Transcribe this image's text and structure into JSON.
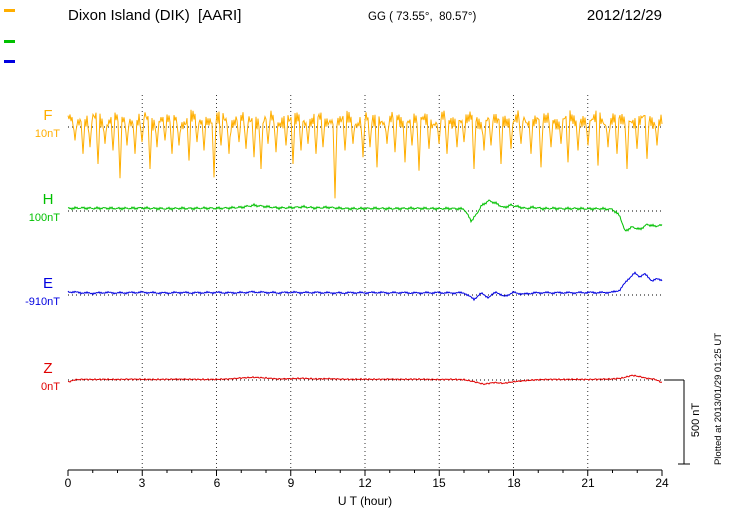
{
  "header": {
    "title": "Dixon Island (DIK)  [AARI]",
    "coords": "GG ( 73.55°,  80.57°)",
    "date": "2012/12/29"
  },
  "axis": {
    "xlabel": "U T (hour)",
    "ticks": [
      "0",
      "3",
      "6",
      "9",
      "12",
      "15",
      "18",
      "21",
      "24"
    ]
  },
  "scale_bar": {
    "label": "500 nT",
    "nT": 500
  },
  "footer_note": "Plotted at 2013/01/29 01:25 UT",
  "chart_data": {
    "type": "line",
    "title": "Magnetogram Dixon Island (DIK) [AARI] 2012/12/29",
    "xlabel": "U T (hour)",
    "x_range": [
      0,
      24
    ],
    "x_ticks": [
      0,
      3,
      6,
      9,
      12,
      15,
      18,
      21,
      24
    ],
    "grid": {
      "vertical_dotted_hours": [
        3,
        6,
        9,
        12,
        15,
        18,
        21
      ],
      "horizontal_dotted": "one dotted baseline per component"
    },
    "scale_reference": {
      "nT": 500,
      "label": "500 nT"
    },
    "series": [
      {
        "name": "F",
        "color": "#FFAE00",
        "baseline_label": "10nT",
        "baseline_nT": 10,
        "character": "dense noise band above baseline with frequent sharp downward spikes",
        "band_center_nT": 40,
        "noise_amplitude_nT": 62,
        "spikes": [
          [
            0.3,
            120
          ],
          [
            0.6,
            200
          ],
          [
            0.9,
            160
          ],
          [
            1.2,
            260
          ],
          [
            1.5,
            140
          ],
          [
            1.8,
            180
          ],
          [
            2.1,
            345
          ],
          [
            2.4,
            150
          ],
          [
            2.7,
            200
          ],
          [
            3.0,
            130
          ],
          [
            3.3,
            290
          ],
          [
            3.6,
            160
          ],
          [
            3.9,
            120
          ],
          [
            4.2,
            200
          ],
          [
            4.5,
            150
          ],
          [
            4.9,
            240
          ],
          [
            5.2,
            130
          ],
          [
            5.5,
            180
          ],
          [
            5.9,
            340
          ],
          [
            6.2,
            150
          ],
          [
            6.5,
            200
          ],
          [
            6.9,
            130
          ],
          [
            7.2,
            170
          ],
          [
            7.5,
            220
          ],
          [
            7.8,
            290
          ],
          [
            8.1,
            140
          ],
          [
            8.4,
            190
          ],
          [
            8.8,
            150
          ],
          [
            9.1,
            260
          ],
          [
            9.4,
            180
          ],
          [
            9.7,
            140
          ],
          [
            10.0,
            200
          ],
          [
            10.3,
            160
          ],
          [
            10.8,
            465
          ],
          [
            11.2,
            180
          ],
          [
            11.5,
            140
          ],
          [
            11.9,
            220
          ],
          [
            12.2,
            160
          ],
          [
            12.5,
            280
          ],
          [
            12.9,
            140
          ],
          [
            13.2,
            190
          ],
          [
            13.6,
            250
          ],
          [
            13.9,
            150
          ],
          [
            14.2,
            300
          ],
          [
            14.6,
            170
          ],
          [
            15.0,
            140
          ],
          [
            15.3,
            200
          ],
          [
            15.7,
            160
          ],
          [
            16.0,
            130
          ],
          [
            16.4,
            290
          ],
          [
            16.8,
            180
          ],
          [
            17.1,
            150
          ],
          [
            17.5,
            260
          ],
          [
            17.9,
            170
          ],
          [
            18.3,
            140
          ],
          [
            18.7,
            200
          ],
          [
            19.1,
            280
          ],
          [
            19.5,
            160
          ],
          [
            19.9,
            140
          ],
          [
            20.2,
            250
          ],
          [
            20.6,
            180
          ],
          [
            21.0,
            150
          ],
          [
            21.4,
            270
          ],
          [
            21.8,
            160
          ],
          [
            22.2,
            200
          ],
          [
            22.6,
            290
          ],
          [
            23.0,
            170
          ],
          [
            23.4,
            230
          ],
          [
            23.8,
            150
          ]
        ]
      },
      {
        "name": "H",
        "color": "#00C000",
        "baseline_label": "100nT",
        "baseline_nT": 100,
        "points": [
          [
            0,
            15
          ],
          [
            0.5,
            18
          ],
          [
            1,
            16
          ],
          [
            1.5,
            17
          ],
          [
            2,
            15
          ],
          [
            2.5,
            16
          ],
          [
            3,
            18
          ],
          [
            3.5,
            15
          ],
          [
            4,
            14
          ],
          [
            4.5,
            16
          ],
          [
            5,
            15
          ],
          [
            5.5,
            17
          ],
          [
            6,
            16
          ],
          [
            6.5,
            18
          ],
          [
            7,
            22
          ],
          [
            7.5,
            34
          ],
          [
            8,
            26
          ],
          [
            8.5,
            18
          ],
          [
            9,
            20
          ],
          [
            9.5,
            25
          ],
          [
            10,
            18
          ],
          [
            10.5,
            22
          ],
          [
            11,
            16
          ],
          [
            11.5,
            14
          ],
          [
            12,
            15
          ],
          [
            12.5,
            16
          ],
          [
            13,
            14
          ],
          [
            13.5,
            15
          ],
          [
            14,
            16
          ],
          [
            14.5,
            15
          ],
          [
            15,
            14
          ],
          [
            15.5,
            15
          ],
          [
            16,
            12
          ],
          [
            16.3,
            -60
          ],
          [
            16.5,
            -20
          ],
          [
            16.7,
            30
          ],
          [
            17,
            62
          ],
          [
            17.3,
            45
          ],
          [
            17.6,
            20
          ],
          [
            17.9,
            35
          ],
          [
            18.2,
            25
          ],
          [
            18.5,
            15
          ],
          [
            18.8,
            22
          ],
          [
            19.2,
            14
          ],
          [
            19.6,
            16
          ],
          [
            20,
            14
          ],
          [
            20.5,
            15
          ],
          [
            21,
            13
          ],
          [
            21.5,
            14
          ],
          [
            22,
            10
          ],
          [
            22.3,
            -30
          ],
          [
            22.5,
            -120
          ],
          [
            22.8,
            -95
          ],
          [
            23.1,
            -110
          ],
          [
            23.4,
            -80
          ],
          [
            23.7,
            -90
          ],
          [
            24,
            -85
          ]
        ]
      },
      {
        "name": "E",
        "color": "#0000E0",
        "baseline_label": "-910nT",
        "baseline_nT": -910,
        "points": [
          [
            0,
            20
          ],
          [
            0.5,
            14
          ],
          [
            1,
            10
          ],
          [
            1.5,
            15
          ],
          [
            2,
            12
          ],
          [
            2.5,
            14
          ],
          [
            3,
            16
          ],
          [
            3.5,
            13
          ],
          [
            4,
            12
          ],
          [
            4.5,
            15
          ],
          [
            5,
            13
          ],
          [
            5.5,
            14
          ],
          [
            6,
            15
          ],
          [
            6.5,
            13
          ],
          [
            7,
            14
          ],
          [
            7.5,
            18
          ],
          [
            8,
            15
          ],
          [
            8.5,
            13
          ],
          [
            9,
            16
          ],
          [
            9.5,
            14
          ],
          [
            10,
            15
          ],
          [
            10.5,
            13
          ],
          [
            11,
            12
          ],
          [
            11.5,
            14
          ],
          [
            12,
            13
          ],
          [
            12.5,
            15
          ],
          [
            13,
            13
          ],
          [
            13.5,
            14
          ],
          [
            14,
            12
          ],
          [
            14.5,
            13
          ],
          [
            15,
            14
          ],
          [
            15.5,
            12
          ],
          [
            16,
            13
          ],
          [
            16.4,
            -25
          ],
          [
            16.7,
            10
          ],
          [
            17,
            -15
          ],
          [
            17.3,
            20
          ],
          [
            17.6,
            -10
          ],
          [
            18,
            15
          ],
          [
            18.4,
            5
          ],
          [
            18.8,
            12
          ],
          [
            19.2,
            14
          ],
          [
            19.6,
            13
          ],
          [
            20,
            14
          ],
          [
            20.5,
            13
          ],
          [
            21,
            15
          ],
          [
            21.5,
            14
          ],
          [
            22,
            16
          ],
          [
            22.3,
            30
          ],
          [
            22.6,
            90
          ],
          [
            22.9,
            130
          ],
          [
            23.1,
            110
          ],
          [
            23.3,
            125
          ],
          [
            23.6,
            85
          ],
          [
            23.8,
            95
          ],
          [
            24,
            90
          ]
        ]
      },
      {
        "name": "Z",
        "color": "#E00000",
        "baseline_label": "0nT",
        "baseline_nT": 0,
        "points": [
          [
            0,
            -12
          ],
          [
            0.3,
            2
          ],
          [
            0.6,
            4
          ],
          [
            1,
            3
          ],
          [
            1.5,
            4
          ],
          [
            2,
            3
          ],
          [
            2.5,
            5
          ],
          [
            3,
            4
          ],
          [
            3.5,
            3
          ],
          [
            4,
            4
          ],
          [
            4.5,
            5
          ],
          [
            5,
            4
          ],
          [
            5.5,
            3
          ],
          [
            6,
            4
          ],
          [
            6.5,
            6
          ],
          [
            7,
            12
          ],
          [
            7.5,
            16
          ],
          [
            8,
            12
          ],
          [
            8.5,
            6
          ],
          [
            9,
            8
          ],
          [
            9.5,
            10
          ],
          [
            10,
            6
          ],
          [
            10.5,
            8
          ],
          [
            11,
            5
          ],
          [
            11.5,
            4
          ],
          [
            12,
            5
          ],
          [
            12.5,
            4
          ],
          [
            13,
            5
          ],
          [
            13.5,
            4
          ],
          [
            14,
            5
          ],
          [
            14.5,
            4
          ],
          [
            15,
            3
          ],
          [
            15.5,
            4
          ],
          [
            16,
            2
          ],
          [
            16.4,
            -10
          ],
          [
            16.8,
            -25
          ],
          [
            17.2,
            -15
          ],
          [
            17.6,
            -20
          ],
          [
            18,
            -10
          ],
          [
            18.4,
            -5
          ],
          [
            18.8,
            0
          ],
          [
            19.2,
            3
          ],
          [
            19.6,
            4
          ],
          [
            20,
            3
          ],
          [
            20.5,
            4
          ],
          [
            21,
            3
          ],
          [
            21.5,
            5
          ],
          [
            22,
            6
          ],
          [
            22.4,
            12
          ],
          [
            22.8,
            28
          ],
          [
            23.1,
            20
          ],
          [
            23.4,
            10
          ],
          [
            23.7,
            5
          ],
          [
            24,
            -15
          ]
        ]
      }
    ]
  }
}
